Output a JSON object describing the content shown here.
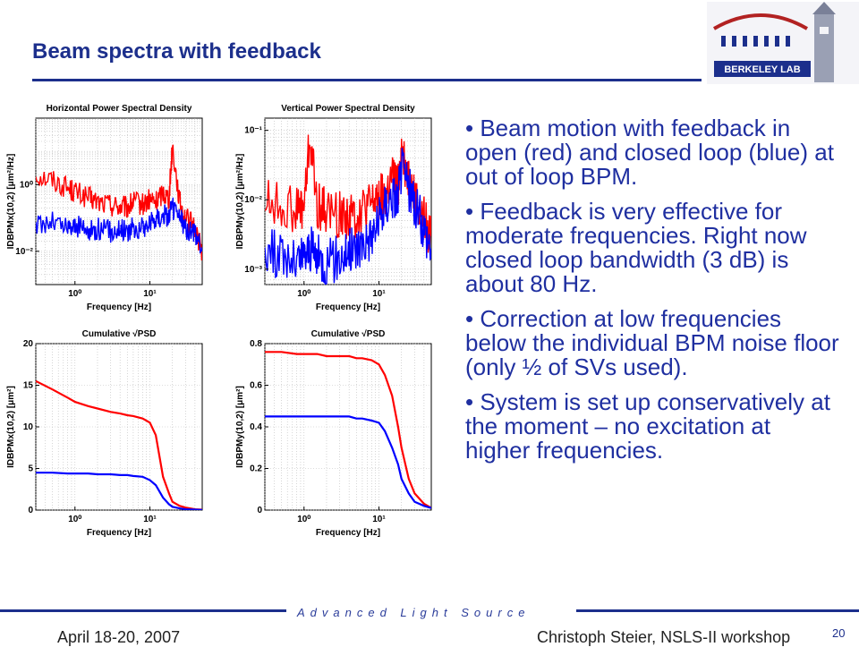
{
  "slide": {
    "title": "Beam spectra with feedback",
    "tagline": "Advanced Light Source",
    "date": "April 18-20, 2007",
    "author": "Christoph Steier, NSLS-II workshop",
    "page": "20"
  },
  "logo": {
    "text": "BERKELEY LAB",
    "icon": "berkeley-lab-logo"
  },
  "bullets": [
    "• Beam motion with feedback in open (red) and closed loop (blue) at out of loop BPM.",
    "• Feedback is very effective for moderate frequencies. Right now closed loop bandwidth (3 dB) is about 80 Hz.",
    "• Correction at low frequencies below the individual BPM noise floor (only ½ of SVs used).",
    "• System is set up conservatively at the moment – no excitation at higher frequencies."
  ],
  "colors": {
    "open_loop": "#ff0000",
    "closed_loop": "#0000ff",
    "title": "#1c2f8c",
    "bullets": "#1f2fa0"
  },
  "chart_data": [
    {
      "type": "line",
      "title": "Horizontal Power Spectral Density",
      "xlabel": "Frequency [Hz]",
      "ylabel": "IDBPMx(10,2) [μm²/Hz]",
      "xscale": "log",
      "yscale": "log",
      "xlim": [
        0.3,
        50
      ],
      "ylim": [
        0.001,
        100
      ],
      "xticks": [
        1,
        10
      ],
      "xticklabels": [
        "10⁰",
        "10¹"
      ],
      "yticks": [
        0.01,
        1
      ],
      "yticklabels": [
        "10⁻²",
        "10⁰"
      ],
      "grid": true,
      "series": [
        {
          "color": "#ff0000",
          "style": "noisy",
          "x": [
            0.3,
            0.5,
            0.8,
            1.0,
            1.5,
            2,
            3,
            4,
            5,
            6,
            8,
            10,
            12,
            15,
            18,
            20,
            25,
            30,
            40,
            50
          ],
          "y": [
            2.0,
            1.4,
            0.8,
            0.6,
            0.4,
            0.3,
            0.25,
            0.22,
            0.2,
            0.3,
            0.25,
            0.35,
            0.3,
            0.6,
            0.4,
            15,
            0.3,
            0.1,
            0.05,
            0.01
          ]
        },
        {
          "color": "#0000ff",
          "style": "noisy",
          "x": [
            0.3,
            0.5,
            0.8,
            1.0,
            1.5,
            2,
            3,
            4,
            5,
            6,
            8,
            10,
            12,
            15,
            18,
            20,
            25,
            30,
            40,
            50
          ],
          "y": [
            0.06,
            0.08,
            0.05,
            0.06,
            0.04,
            0.05,
            0.04,
            0.05,
            0.04,
            0.05,
            0.05,
            0.07,
            0.1,
            0.12,
            0.12,
            0.2,
            0.1,
            0.05,
            0.03,
            0.01
          ]
        }
      ]
    },
    {
      "type": "line",
      "title": "Vertical Power Spectral Density",
      "xlabel": "Frequency [Hz]",
      "ylabel": "IDBPMy(10,2) [μm²/Hz]",
      "xscale": "log",
      "yscale": "log",
      "xlim": [
        0.3,
        50
      ],
      "ylim": [
        0.0006,
        0.15
      ],
      "xticks": [
        1,
        10
      ],
      "xticklabels": [
        "10⁰",
        "10¹"
      ],
      "yticks": [
        0.001,
        0.01,
        0.1
      ],
      "yticklabels": [
        "10⁻³",
        "10⁻²",
        "10⁻¹"
      ],
      "grid": true,
      "series": [
        {
          "color": "#ff0000",
          "style": "noisy",
          "x": [
            0.3,
            0.5,
            0.8,
            1.0,
            1.2,
            1.5,
            2,
            3,
            4,
            5,
            6,
            8,
            10,
            12,
            15,
            18,
            20,
            25,
            30,
            40,
            50
          ],
          "y": [
            0.01,
            0.008,
            0.007,
            0.008,
            0.08,
            0.008,
            0.007,
            0.006,
            0.006,
            0.006,
            0.007,
            0.008,
            0.012,
            0.01,
            0.02,
            0.015,
            0.05,
            0.02,
            0.01,
            0.005,
            0.003
          ]
        },
        {
          "color": "#0000ff",
          "style": "noisy",
          "x": [
            0.3,
            0.5,
            0.8,
            1.0,
            1.2,
            1.5,
            2,
            3,
            4,
            5,
            6,
            8,
            10,
            12,
            15,
            18,
            20,
            25,
            30,
            40,
            50
          ],
          "y": [
            0.002,
            0.0015,
            0.0012,
            0.0015,
            0.002,
            0.0015,
            0.0012,
            0.0015,
            0.0018,
            0.002,
            0.0025,
            0.003,
            0.005,
            0.008,
            0.012,
            0.01,
            0.03,
            0.015,
            0.008,
            0.004,
            0.002
          ]
        }
      ]
    },
    {
      "type": "line",
      "title": "Cumulative √PSD",
      "xlabel": "Frequency [Hz]",
      "ylabel": "IDBPMx(10,2) [μm²]",
      "xscale": "log",
      "yscale": "linear",
      "xlim": [
        0.3,
        50
      ],
      "ylim": [
        0,
        20
      ],
      "xticks": [
        1,
        10
      ],
      "xticklabels": [
        "10⁰",
        "10¹"
      ],
      "yticks": [
        0,
        5,
        10,
        15,
        20
      ],
      "yticklabels": [
        "0",
        "5",
        "10",
        "15",
        "20"
      ],
      "grid": true,
      "series": [
        {
          "color": "#ff0000",
          "style": "smooth",
          "x": [
            0.3,
            0.5,
            0.8,
            1.0,
            1.5,
            2,
            3,
            4,
            5,
            6,
            8,
            10,
            12,
            15,
            18,
            20,
            25,
            30,
            40,
            50
          ],
          "y": [
            15.5,
            14.5,
            13.5,
            13.0,
            12.5,
            12.2,
            11.8,
            11.6,
            11.4,
            11.3,
            11.0,
            10.5,
            9.0,
            4.0,
            2.0,
            1.0,
            0.5,
            0.3,
            0.1,
            0.05
          ]
        },
        {
          "color": "#0000ff",
          "style": "smooth",
          "x": [
            0.3,
            0.5,
            0.8,
            1.0,
            1.5,
            2,
            3,
            4,
            5,
            6,
            8,
            10,
            12,
            15,
            18,
            20,
            25,
            30,
            40,
            50
          ],
          "y": [
            4.5,
            4.5,
            4.4,
            4.4,
            4.4,
            4.3,
            4.3,
            4.2,
            4.2,
            4.1,
            4.0,
            3.6,
            3.0,
            1.5,
            0.7,
            0.4,
            0.2,
            0.1,
            0.05,
            0.02
          ]
        }
      ]
    },
    {
      "type": "line",
      "title": "Cumulative √PSD",
      "xlabel": "Frequency [Hz]",
      "ylabel": "IDBPMy(10,2) [μm²]",
      "xscale": "log",
      "yscale": "linear",
      "xlim": [
        0.3,
        50
      ],
      "ylim": [
        0,
        0.8
      ],
      "xticks": [
        1,
        10
      ],
      "xticklabels": [
        "10⁰",
        "10¹"
      ],
      "yticks": [
        0,
        0.2,
        0.4,
        0.6,
        0.8
      ],
      "yticklabels": [
        "0",
        "0.2",
        "0.4",
        "0.6",
        "0.8"
      ],
      "grid": true,
      "series": [
        {
          "color": "#ff0000",
          "style": "smooth",
          "x": [
            0.3,
            0.5,
            0.8,
            1.0,
            1.5,
            2,
            3,
            4,
            5,
            6,
            8,
            10,
            12,
            15,
            18,
            20,
            25,
            30,
            40,
            50
          ],
          "y": [
            0.76,
            0.76,
            0.75,
            0.75,
            0.75,
            0.74,
            0.74,
            0.74,
            0.73,
            0.73,
            0.72,
            0.7,
            0.65,
            0.55,
            0.4,
            0.3,
            0.15,
            0.08,
            0.03,
            0.01
          ]
        },
        {
          "color": "#0000ff",
          "style": "smooth",
          "x": [
            0.3,
            0.5,
            0.8,
            1.0,
            1.5,
            2,
            3,
            4,
            5,
            6,
            8,
            10,
            12,
            15,
            18,
            20,
            25,
            30,
            40,
            50
          ],
          "y": [
            0.45,
            0.45,
            0.45,
            0.45,
            0.45,
            0.45,
            0.45,
            0.45,
            0.44,
            0.44,
            0.43,
            0.42,
            0.38,
            0.3,
            0.22,
            0.15,
            0.08,
            0.04,
            0.02,
            0.01
          ]
        }
      ]
    }
  ]
}
